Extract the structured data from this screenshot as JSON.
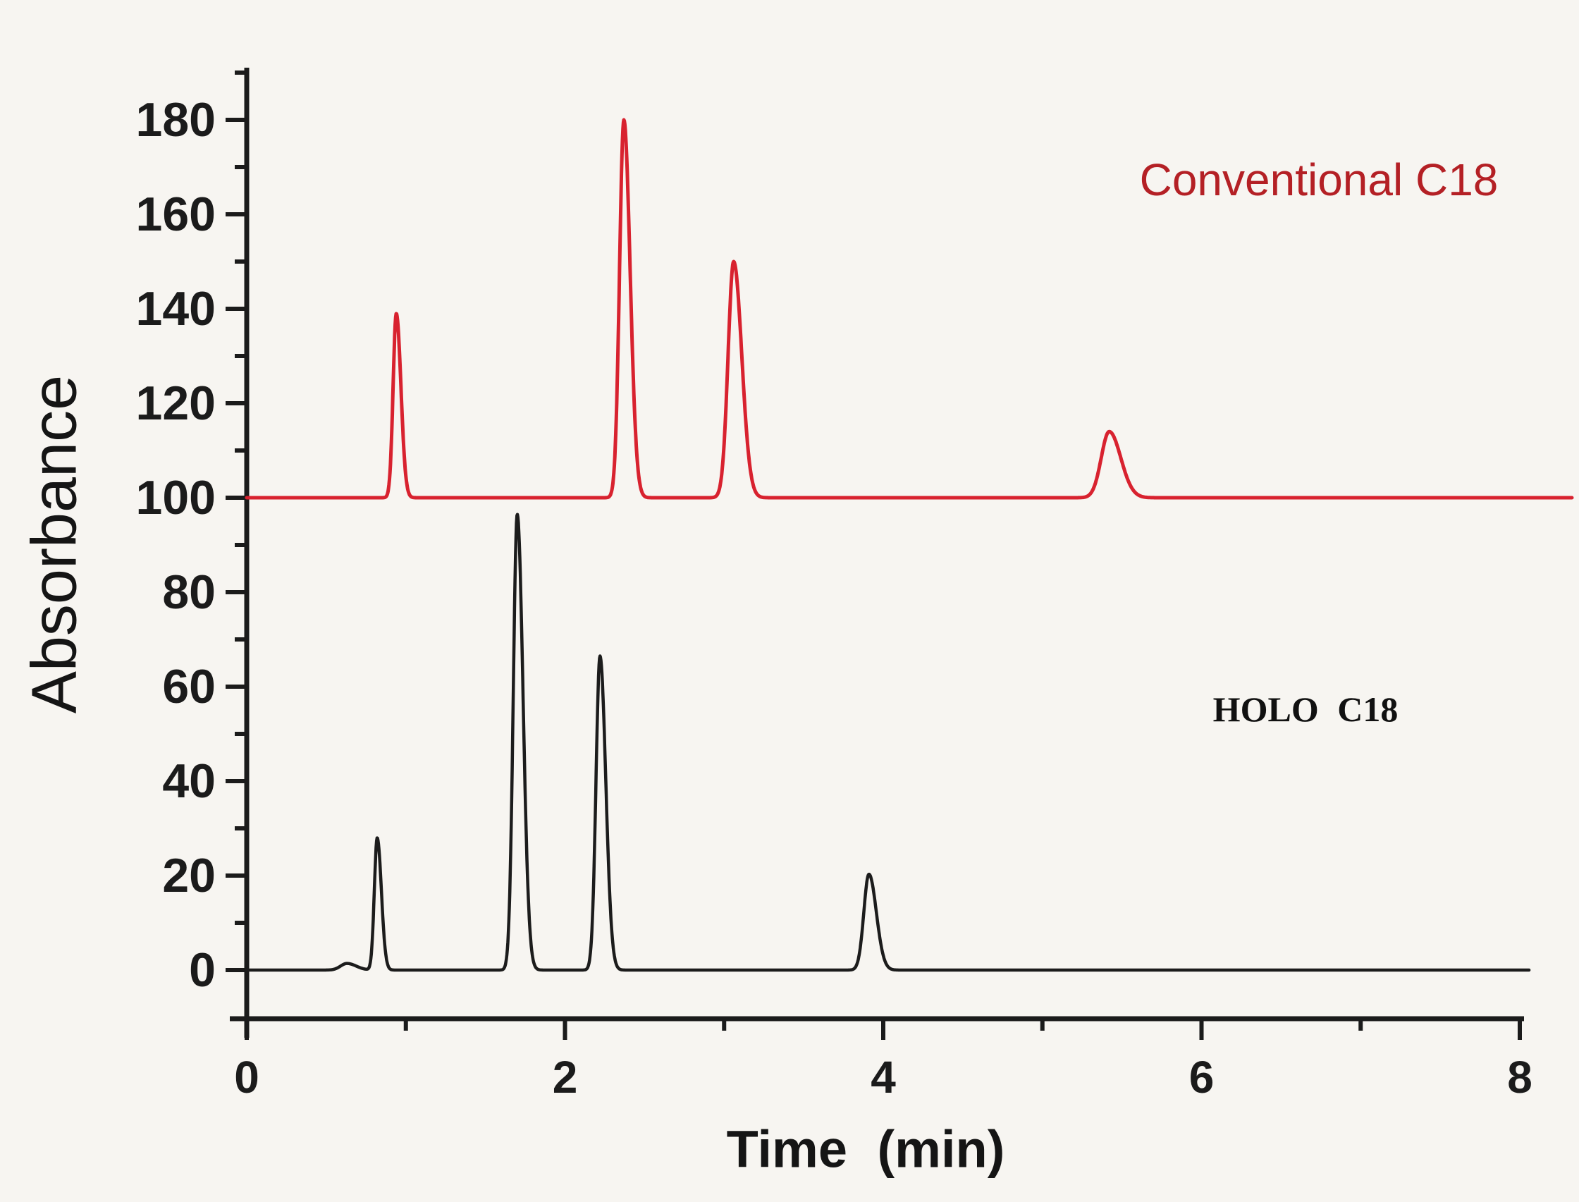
{
  "figure": {
    "background": "#f7f5f1",
    "axis_color": "#1b1b1b"
  },
  "chart_data": {
    "type": "line",
    "title": "",
    "xlabel": "Time (min)",
    "ylabel": "Absorbance",
    "xlim": [
      0,
      8
    ],
    "ylim": [
      -10,
      195
    ],
    "grid": false,
    "legend_position": "inline-annotations",
    "x_major_ticks": [
      0,
      2,
      4,
      6,
      8
    ],
    "x_minor_ticks": [
      1,
      3,
      5,
      7
    ],
    "y_major_ticks": [
      0,
      20,
      40,
      60,
      80,
      100,
      120,
      140,
      160,
      180
    ],
    "y_minor_ticks": [
      10,
      30,
      50,
      70,
      90,
      110,
      130,
      150,
      170,
      190
    ],
    "tailing_factor": 1.45,
    "series": [
      {
        "name": "Conventional C18",
        "color": "#d8222f",
        "label_color": "#b42025",
        "baseline": 100,
        "x_end": 8.33,
        "peaks": [
          {
            "t": 0.94,
            "apex": 139,
            "height": 39,
            "sigma": 0.02
          },
          {
            "t": 2.37,
            "apex": 180,
            "height": 80,
            "sigma": 0.027
          },
          {
            "t": 3.06,
            "apex": 150,
            "height": 50,
            "sigma": 0.035
          },
          {
            "t": 5.42,
            "apex": 114,
            "height": 14,
            "sigma": 0.05
          }
        ]
      },
      {
        "name": "HOLO C18",
        "color": "#1c1c1c",
        "label_color": "#111111",
        "baseline": 0,
        "x_end": 8.06,
        "peaks": [
          {
            "t": 0.82,
            "apex": 28,
            "height": 28,
            "sigma": 0.018
          },
          {
            "t": 1.7,
            "apex": 97,
            "height": 96.5,
            "sigma": 0.025
          },
          {
            "t": 2.22,
            "apex": 67,
            "height": 66.5,
            "sigma": 0.025
          },
          {
            "t": 3.91,
            "apex": 20,
            "height": 20.3,
            "sigma": 0.032
          }
        ],
        "baseline_blips": [
          {
            "t": 0.63,
            "height": 1.4,
            "sigma": 0.04
          }
        ]
      }
    ]
  }
}
